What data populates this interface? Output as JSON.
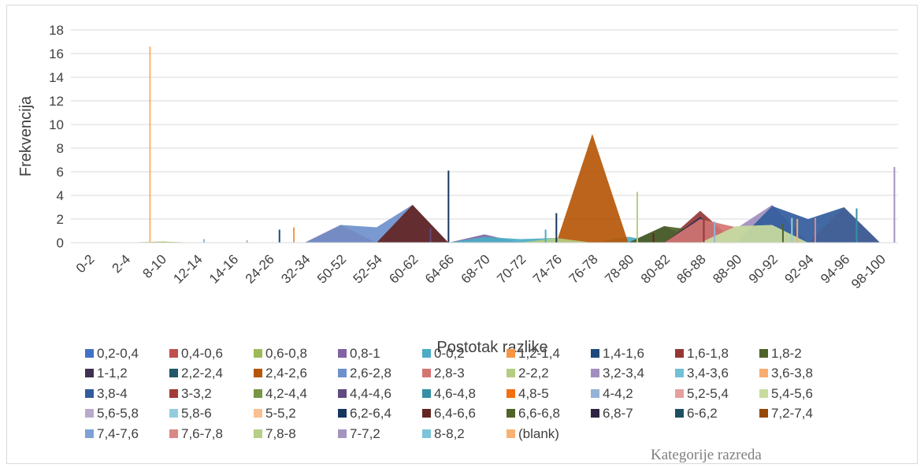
{
  "chart_data": {
    "type": "area",
    "xlabel": "Postotak razlike",
    "ylabel": "Frekvencija",
    "ylim": [
      0,
      18
    ],
    "yticks": [
      0,
      2,
      4,
      6,
      8,
      10,
      12,
      14,
      16,
      18
    ],
    "grid": true,
    "legend_position": "bottom",
    "legend_title": "Kategorije razreda",
    "categories": [
      "0-2",
      "2-4",
      "8-10",
      "12-14",
      "14-16",
      "24-26",
      "32-34",
      "50-52",
      "52-54",
      "60-62",
      "64-66",
      "68-70",
      "70-72",
      "74-76",
      "76-78",
      "78-80",
      "80-82",
      "86-88",
      "88-90",
      "90-92",
      "92-94",
      "94-96",
      "98-100"
    ],
    "series": [
      {
        "name": "0,2-0,4",
        "color": "#4472c4",
        "values": [
          0,
          0,
          0,
          0,
          0,
          0,
          0,
          1,
          0,
          0,
          0,
          0,
          0,
          0,
          0,
          0,
          0,
          0,
          0,
          0,
          0,
          0,
          0
        ]
      },
      {
        "name": "0,4-0,6",
        "color": "#c0504d",
        "values": [
          0,
          0,
          0,
          0,
          0,
          0,
          0,
          1.5,
          0,
          0,
          0,
          0,
          0,
          0,
          0,
          0,
          0,
          0,
          0,
          0,
          0,
          0,
          0
        ]
      },
      {
        "name": "0,6-0,8",
        "color": "#9bbb59",
        "values": [
          0,
          0,
          0.1,
          0,
          0,
          0,
          0,
          0,
          0,
          0,
          0,
          0,
          0,
          0,
          0,
          0,
          0,
          0,
          0,
          0,
          0,
          0,
          0
        ]
      },
      {
        "name": "0,8-1",
        "color": "#8064a2",
        "values": [
          0,
          0,
          0,
          0,
          0,
          0,
          0,
          0,
          0,
          0,
          0,
          0.7,
          0,
          0,
          0,
          0,
          0,
          0,
          0,
          0,
          0,
          0,
          0
        ]
      },
      {
        "name": "0-0,2",
        "color": "#4bacc6",
        "values": [
          0,
          0,
          0,
          0,
          0,
          0,
          0,
          0,
          0,
          0,
          0,
          0.5,
          0.3,
          0.4,
          0,
          0.5,
          0,
          0,
          0,
          0,
          0,
          0,
          0
        ]
      },
      {
        "name": "1,2-1,4",
        "color": "#f79646",
        "values": [
          0,
          0,
          0,
          0,
          0,
          0,
          0,
          0,
          0,
          0,
          0,
          0,
          0,
          0,
          0,
          0,
          0,
          0,
          0,
          0,
          0,
          3,
          0
        ]
      },
      {
        "name": "1,4-1,6",
        "color": "#1f497d",
        "values": [
          0,
          0,
          0,
          0,
          0,
          0,
          0,
          0,
          0,
          0,
          0,
          0,
          0,
          0,
          0,
          0,
          1.4,
          0,
          0,
          0,
          0,
          0,
          0
        ]
      },
      {
        "name": "1,6-1,8",
        "color": "#953735",
        "values": [
          0,
          0,
          0,
          0,
          0,
          0,
          0,
          0,
          0,
          0,
          0,
          0,
          0,
          0,
          0,
          0,
          0,
          2.7,
          0,
          0,
          0,
          0,
          0
        ]
      },
      {
        "name": "1,8-2",
        "color": "#4f6228",
        "values": [
          0,
          0,
          0,
          0,
          0,
          0,
          0,
          0,
          0,
          0,
          0,
          0,
          0,
          0,
          0,
          0,
          1.4,
          1,
          0,
          0,
          0,
          0,
          0
        ]
      },
      {
        "name": "1-1,2",
        "color": "#3f3151",
        "values": [
          0,
          0,
          0,
          0,
          0,
          0,
          0,
          0,
          0,
          0,
          0,
          0,
          0,
          0,
          0,
          0,
          0,
          2.2,
          0,
          0,
          0,
          0,
          0
        ]
      },
      {
        "name": "2,2-2,4",
        "color": "#215968",
        "values": [
          0,
          0,
          0,
          0,
          0,
          0,
          0,
          0,
          0,
          0,
          0,
          0,
          0,
          0,
          0,
          0,
          0,
          0,
          0,
          0,
          0,
          0,
          0
        ]
      },
      {
        "name": "2,4-2,6",
        "color": "#b65708",
        "values": [
          0,
          0,
          0,
          0,
          0,
          0,
          0,
          0,
          0,
          0,
          0,
          0,
          0,
          0,
          9.2,
          0,
          0,
          0,
          0,
          0,
          0,
          0,
          0
        ]
      },
      {
        "name": "2,6-2,8",
        "color": "#6e90cc",
        "values": [
          0,
          0,
          0,
          0,
          0,
          0,
          0,
          1.5,
          1.3,
          3.2,
          0,
          0,
          0,
          0,
          0,
          0,
          0,
          0,
          0,
          0,
          0,
          0,
          0
        ]
      },
      {
        "name": "2,8-3",
        "color": "#d47572",
        "values": [
          0,
          0,
          0,
          0,
          0,
          0,
          0,
          0,
          0,
          0,
          0,
          0,
          0,
          0,
          0,
          0,
          0,
          2,
          1.3,
          0,
          0,
          0,
          0
        ]
      },
      {
        "name": "2-2,2",
        "color": "#b3cd82",
        "values": [
          0,
          0,
          0,
          0,
          0,
          0,
          0,
          0,
          0,
          0,
          0,
          0,
          0,
          0.4,
          0,
          0,
          0,
          0,
          0,
          0,
          0,
          0,
          0
        ]
      },
      {
        "name": "3,2-3,4",
        "color": "#a18ebe",
        "values": [
          0,
          0,
          0,
          0,
          0,
          0,
          0,
          0,
          0,
          0,
          0,
          0,
          0,
          0,
          0,
          0,
          0,
          0,
          1.2,
          3.2,
          0,
          0,
          0
        ]
      },
      {
        "name": "3,4-3,6",
        "color": "#72c0d4",
        "values": [
          0,
          0,
          0,
          0,
          0,
          0,
          0,
          0,
          0,
          0,
          0,
          0,
          0,
          0,
          0,
          0,
          0,
          0,
          0,
          0,
          0,
          0,
          0
        ]
      },
      {
        "name": "3,6-3,8",
        "color": "#f9ac70",
        "values": [
          0,
          0,
          0,
          0,
          0,
          0,
          0,
          0,
          0,
          0,
          0,
          0,
          0,
          0,
          0,
          0,
          0,
          0,
          0,
          0,
          0,
          0,
          0
        ]
      },
      {
        "name": "3,8-4",
        "color": "#335c9d",
        "values": [
          0,
          0,
          0,
          0,
          0,
          0,
          0,
          0,
          0,
          0,
          0,
          0,
          0,
          0,
          0,
          0,
          0,
          0,
          0,
          3.1,
          2,
          3,
          0
        ]
      },
      {
        "name": "3-3,2",
        "color": "#a33c39",
        "values": [
          0,
          0,
          0,
          0,
          0,
          0,
          0,
          0,
          0,
          0,
          0,
          0,
          0,
          0,
          0,
          0,
          0,
          0,
          0,
          0,
          0,
          0,
          0
        ]
      },
      {
        "name": "4,2-4,4",
        "color": "#779644",
        "values": [
          0,
          0,
          0,
          0,
          0,
          0,
          0,
          0,
          0,
          0,
          0,
          0,
          0,
          0,
          0,
          0,
          0,
          0,
          0,
          0,
          0,
          0,
          0
        ]
      },
      {
        "name": "4,4-4,6",
        "color": "#614a80",
        "values": [
          0,
          0,
          0,
          0,
          0,
          0,
          0,
          0,
          0,
          0,
          0,
          0,
          0,
          0,
          0,
          0,
          0,
          0,
          0,
          0,
          0,
          0,
          0
        ]
      },
      {
        "name": "4,6-4,8",
        "color": "#378fa6",
        "values": [
          0,
          0,
          0,
          0,
          0,
          0,
          0,
          0,
          0,
          0,
          0,
          0,
          0,
          0,
          0,
          0,
          0,
          0,
          0,
          0,
          0,
          0,
          0
        ]
      },
      {
        "name": "4,8-5",
        "color": "#f36f0f",
        "values": [
          0,
          0,
          0,
          0,
          0,
          0,
          0,
          0,
          0,
          0,
          0,
          0,
          0,
          0,
          0,
          0,
          0,
          0,
          0,
          0,
          0,
          0,
          0
        ]
      },
      {
        "name": "4-4,2",
        "color": "#95b3d7",
        "values": [
          0,
          0,
          0,
          0,
          0,
          0,
          0,
          0,
          0,
          0,
          0,
          0,
          0,
          0,
          0,
          0,
          0,
          0,
          0,
          0,
          0,
          0,
          0
        ]
      },
      {
        "name": "5,2-5,4",
        "color": "#e6a09e",
        "values": [
          0,
          0,
          0,
          0,
          0,
          0,
          0,
          0,
          0,
          0,
          0,
          0,
          0,
          0,
          0,
          0,
          0,
          0,
          0,
          0,
          0,
          0,
          0
        ]
      },
      {
        "name": "5,4-5,6",
        "color": "#c9dc9d",
        "values": [
          0,
          0,
          0,
          0,
          0,
          0,
          0,
          0,
          0,
          0,
          0,
          0,
          0,
          0,
          0,
          0,
          0,
          0,
          1.4,
          1.5,
          0,
          0,
          0
        ]
      },
      {
        "name": "5,6-5,8",
        "color": "#b8aac9",
        "values": [
          0,
          0,
          0,
          0,
          0,
          0,
          0,
          0,
          0,
          0,
          0,
          0,
          0,
          0,
          0,
          0,
          0,
          0,
          0,
          0,
          0,
          0,
          0
        ]
      },
      {
        "name": "5,8-6",
        "color": "#93cddd",
        "values": [
          0,
          0,
          0,
          0,
          0,
          0,
          0,
          0,
          0,
          0,
          0,
          0,
          0,
          0,
          0,
          0,
          0,
          0,
          0,
          0,
          0,
          0,
          0
        ]
      },
      {
        "name": "5-5,2",
        "color": "#fac08f",
        "values": [
          0,
          0,
          0,
          0,
          0,
          0,
          0,
          0,
          0,
          0,
          0,
          0,
          0,
          0,
          0,
          0,
          0,
          0,
          0,
          0,
          0,
          0,
          0
        ]
      },
      {
        "name": "6,2-6,4",
        "color": "#17365d",
        "values": [
          0,
          0,
          0,
          0,
          0,
          0,
          0,
          0,
          0,
          0,
          0,
          0,
          0,
          0,
          0,
          0,
          0,
          0,
          0,
          0,
          0,
          0,
          0
        ]
      },
      {
        "name": "6,4-6,6",
        "color": "#632523",
        "values": [
          0,
          0,
          0,
          0,
          0,
          0,
          0,
          0,
          0,
          3.2,
          0,
          0,
          0,
          0,
          0,
          0,
          0,
          0,
          0,
          0,
          0,
          0,
          0
        ]
      },
      {
        "name": "6,6-6,8",
        "color": "#4f6228",
        "values": [
          0,
          0,
          0,
          0,
          0,
          0,
          0,
          0,
          0,
          0,
          0,
          0,
          0,
          0,
          0,
          0,
          0,
          0,
          0,
          0,
          0,
          0,
          0
        ]
      },
      {
        "name": "6,8-7",
        "color": "#2d2340",
        "values": [
          0,
          0,
          0,
          0,
          0,
          0,
          0,
          0,
          0,
          0,
          0,
          0,
          0,
          0,
          0,
          0,
          0,
          0,
          0,
          0,
          0,
          0,
          0
        ]
      },
      {
        "name": "6-6,2",
        "color": "#1d5060",
        "values": [
          0,
          0,
          0,
          0,
          0,
          0,
          0,
          0,
          0,
          0,
          0,
          0,
          0,
          0,
          0,
          0,
          0,
          0,
          0,
          0,
          0,
          0,
          0
        ]
      },
      {
        "name": "7,2-7,4",
        "color": "#974806",
        "values": [
          0,
          0,
          0,
          0,
          0,
          0,
          0,
          0,
          0,
          0,
          0,
          0,
          0,
          0,
          0,
          0,
          0,
          0,
          0,
          0,
          0,
          0,
          0
        ]
      },
      {
        "name": "7,4-7,6",
        "color": "#7fa1d6",
        "values": [
          0,
          0,
          0,
          0,
          0,
          0,
          0,
          0,
          0,
          0,
          0,
          0,
          0,
          0,
          0,
          0,
          0,
          0,
          0,
          0,
          0,
          0,
          0
        ]
      },
      {
        "name": "7,6-7,8",
        "color": "#d98886",
        "values": [
          0,
          0,
          0,
          0,
          0,
          0,
          0,
          0,
          0,
          0,
          0,
          0,
          0,
          0,
          0,
          0,
          0,
          0,
          0,
          0,
          0,
          0,
          0
        ]
      },
      {
        "name": "7,8-8",
        "color": "#b6cf86",
        "values": [
          0,
          0,
          0,
          0,
          0,
          0,
          0,
          0,
          0,
          0,
          0,
          0,
          0,
          0,
          0,
          0,
          0,
          0,
          0,
          0,
          0,
          0,
          0
        ]
      },
      {
        "name": "7-7,2",
        "color": "#a394c0",
        "values": [
          0,
          0,
          0,
          0,
          0,
          0,
          0,
          0,
          0,
          0,
          0,
          0,
          0,
          0,
          0,
          0,
          0,
          0,
          0,
          0,
          0,
          0,
          0
        ]
      },
      {
        "name": "8-8,2",
        "color": "#7cc4d8",
        "values": [
          0,
          0,
          0,
          0,
          0,
          0,
          0,
          0,
          0,
          0,
          0,
          0,
          0,
          0,
          0,
          0,
          0,
          0,
          0,
          0,
          0,
          0,
          0
        ]
      },
      {
        "name": "(blank)",
        "color": "#f8b374",
        "values": [
          0,
          0,
          0,
          0,
          0,
          0,
          0,
          0,
          0,
          0,
          0,
          0,
          0,
          0,
          0,
          0,
          0,
          0,
          0,
          0,
          0,
          0,
          0
        ]
      }
    ],
    "spikes": [
      {
        "series": "(blank)",
        "x": "2-4",
        "offset": 0.7,
        "value": 16.6
      },
      {
        "series": "0,6-0,8",
        "x": "8-10",
        "offset": 0.1,
        "value": 0.1
      },
      {
        "series": "4-4,2",
        "x": "12-14",
        "offset": 0.2,
        "value": 0.3
      },
      {
        "series": "5,6-5,8",
        "x": "14-16",
        "offset": 0.4,
        "value": 0.2
      },
      {
        "series": "1,4-1,6",
        "x": "24-26",
        "offset": 0.3,
        "value": 1.1
      },
      {
        "series": "1,2-1,4",
        "x": "32-34",
        "offset": -0.3,
        "value": 1.3
      },
      {
        "series": "6,2-6,4",
        "x": "64-66",
        "offset": 0,
        "value": 6.1
      },
      {
        "series": "4,4-4,6",
        "x": "64-66",
        "offset": -0.5,
        "value": 1.2
      },
      {
        "series": "6,2-6,4",
        "x": "74-76",
        "offset": 0,
        "value": 2.5
      },
      {
        "series": "0-0,2",
        "x": "74-76",
        "offset": -0.3,
        "value": 1.1
      },
      {
        "series": "7,8-8",
        "x": "78-80",
        "offset": 0.25,
        "value": 4.3
      },
      {
        "series": "6,4-6,6",
        "x": "80-82",
        "offset": -0.3,
        "value": 0.8
      },
      {
        "series": "1,6-1,8",
        "x": "86-88",
        "offset": 0.1,
        "value": 2
      },
      {
        "series": "4-4,2",
        "x": "86-88",
        "offset": 0.4,
        "value": 1.8
      },
      {
        "series": "6,6-6,8",
        "x": "90-92",
        "offset": 0.3,
        "value": 1.6
      },
      {
        "series": "5,8-6",
        "x": "90-92",
        "offset": 0.55,
        "value": 2.1
      },
      {
        "series": "3,6-3,8",
        "x": "92-94",
        "offset": -0.3,
        "value": 2
      },
      {
        "series": "7,6-7,8",
        "x": "92-94",
        "offset": 0.2,
        "value": 2.1
      },
      {
        "series": "4,6-4,8",
        "x": "94-96",
        "offset": 0.35,
        "value": 2.9
      },
      {
        "series": "7-7,2",
        "x": "98-100",
        "offset": 0.4,
        "value": 6.4
      }
    ]
  }
}
